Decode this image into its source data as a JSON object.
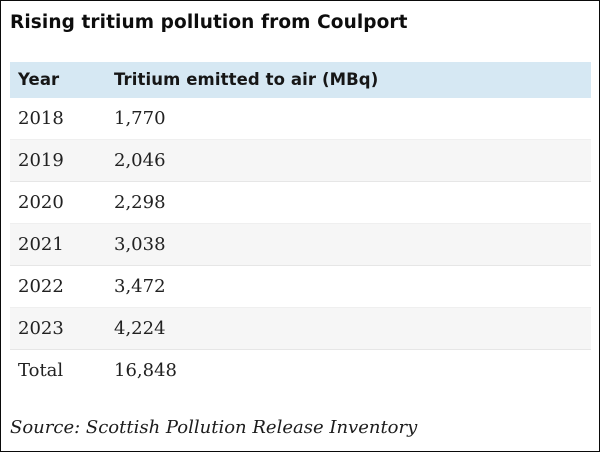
{
  "title": "Rising tritium pollution from Coulport",
  "colors": {
    "header_bg": "#d6e8f3",
    "stripe_bg": "#f6f6f6",
    "frame_border": "#0a0a0a",
    "text": "#212121"
  },
  "table": {
    "columns": [
      "Year",
      "Tritium emitted to air (MBq)"
    ],
    "rows": [
      {
        "year": "2018",
        "value": "1,770"
      },
      {
        "year": "2019",
        "value": "2,046"
      },
      {
        "year": "2020",
        "value": "2,298"
      },
      {
        "year": "2021",
        "value": "3,038"
      },
      {
        "year": "2022",
        "value": "3,472"
      },
      {
        "year": "2023",
        "value": "4,224"
      },
      {
        "year": "Total",
        "value": "16,848"
      }
    ]
  },
  "source": "Source: Scottish Pollution Release Inventory",
  "chart_data": {
    "type": "table",
    "title": "Rising tritium pollution from Coulport",
    "columns": [
      "Year",
      "Tritium emitted to air (MBq)"
    ],
    "categories": [
      "2018",
      "2019",
      "2020",
      "2021",
      "2022",
      "2023"
    ],
    "values": [
      1770,
      2046,
      2298,
      3038,
      3472,
      4224
    ],
    "total": 16848,
    "source": "Source: Scottish Pollution Release Inventory",
    "layout": {
      "zebra_striping": true,
      "header_background": "#d6e8f3"
    }
  }
}
